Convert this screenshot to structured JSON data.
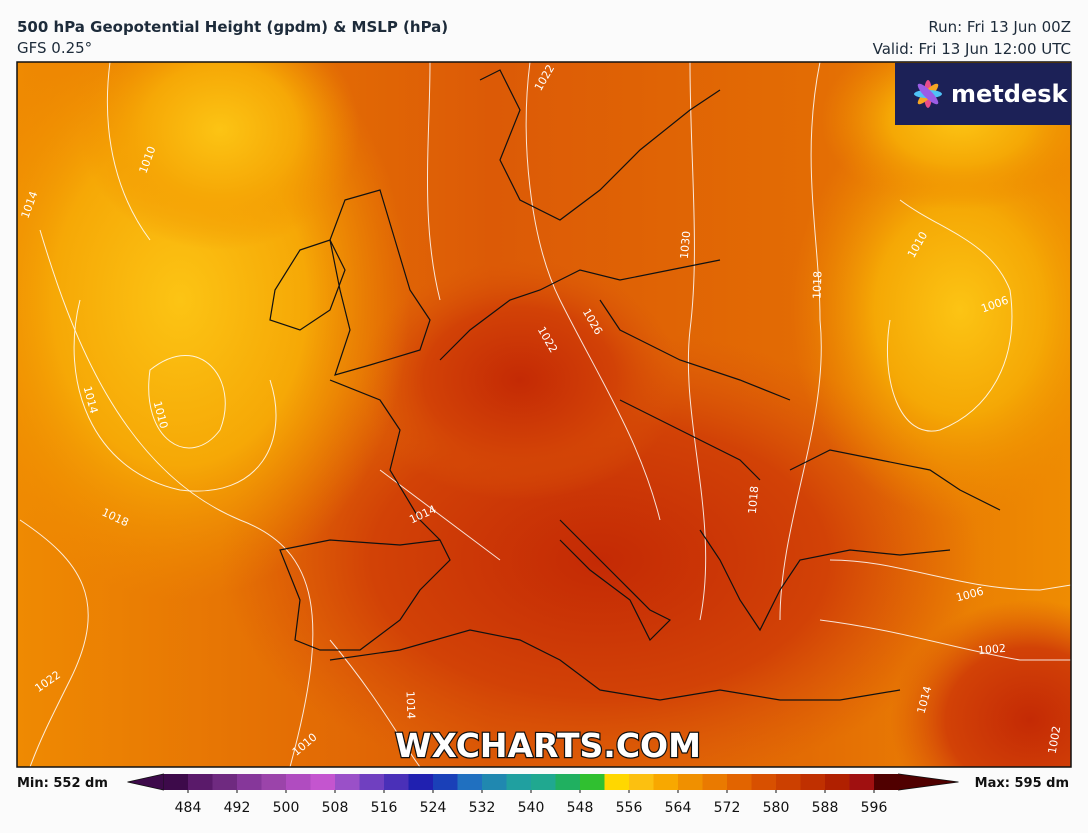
{
  "header": {
    "title": "500 hPa Geopotential Height (gpdm) & MSLP (hPa)",
    "subtitle": "GFS 0.25°",
    "run": "Run: Fri 13 Jun 00Z",
    "valid": "Valid: Fri 13 Jun 12:00 UTC"
  },
  "logo": "metdesk",
  "watermark": "WXCHARTS.COM",
  "contour_labels": [
    1010,
    1014,
    1022,
    1030,
    1018,
    1010,
    1006,
    1026,
    1022,
    1014,
    1010,
    1018,
    1014,
    1018,
    1006,
    1002,
    1022,
    1014,
    1010,
    1002,
    1014
  ],
  "colorbar": {
    "min_label": "Min: 552 dm",
    "max_label": "Max: 595 dm",
    "lim": [
      480,
      600
    ],
    "ticks": [
      484,
      492,
      500,
      508,
      516,
      524,
      532,
      540,
      548,
      556,
      564,
      572,
      580,
      588,
      596
    ],
    "colors": [
      "#3d0a4a",
      "#5a1a6a",
      "#6f2a80",
      "#86379a",
      "#9b44aa",
      "#b04cc0",
      "#c455cf",
      "#9a50c8",
      "#7040c0",
      "#4a30b8",
      "#2020b0",
      "#1a40b8",
      "#2070c0",
      "#2088b0",
      "#20a0a0",
      "#20a890",
      "#20b060",
      "#30c030",
      "#ffd700",
      "#fcc010",
      "#f8a800",
      "#f09000",
      "#ea7a00",
      "#e26400",
      "#d85000",
      "#cc4000",
      "#c03000",
      "#b02000",
      "#a01010",
      "#500000"
    ]
  }
}
